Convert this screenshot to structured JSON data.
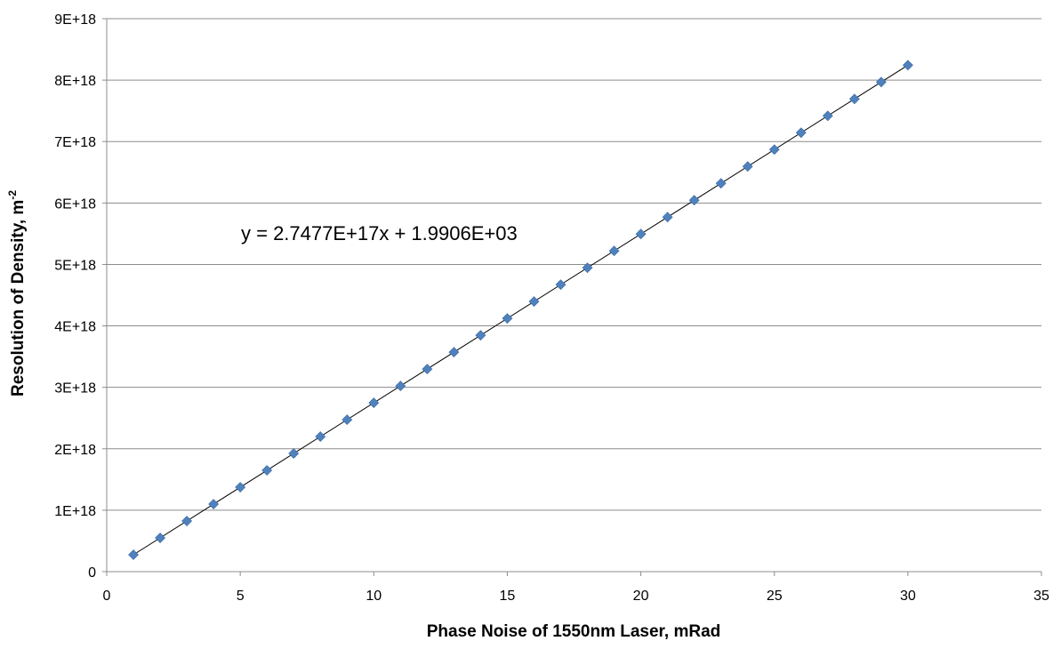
{
  "chart_data": {
    "type": "scatter",
    "title": "",
    "xlabel": "Phase Noise of 1550nm Laser, mRad",
    "ylabel_main": "Resolution of Density, m",
    "ylabel_sup": "-2",
    "xlim": [
      0,
      35
    ],
    "ylim": [
      0,
      9e+18
    ],
    "xticks": [
      0,
      5,
      10,
      15,
      20,
      25,
      30,
      35
    ],
    "xtick_labels": [
      "0",
      "5",
      "10",
      "15",
      "20",
      "25",
      "30",
      "35"
    ],
    "yticks": [
      0,
      1e+18,
      2e+18,
      3e+18,
      4e+18,
      5e+18,
      6e+18,
      7e+18,
      8e+18,
      9e+18
    ],
    "ytick_labels": [
      "0",
      "1E+18",
      "2E+18",
      "3E+18",
      "4E+18",
      "5E+18",
      "6E+18",
      "7E+18",
      "8E+18",
      "9E+18"
    ],
    "grid": "horizontal",
    "legend": "none",
    "marker_color": "#4F81BD",
    "trendline": {
      "slope": 2.7477e+17,
      "intercept": 1990.6,
      "label": "y = 2.7477E+17x + 1.9906E+03",
      "color": "#000000"
    },
    "series": [
      {
        "x": [
          1,
          2,
          3,
          4,
          5,
          6,
          7,
          8,
          9,
          10,
          11,
          12,
          13,
          14,
          15,
          16,
          17,
          18,
          19,
          20,
          21,
          22,
          23,
          24,
          25,
          26,
          27,
          28,
          29,
          30
        ],
        "values": [
          2.7477e+17,
          5.4954e+17,
          8.2431e+17,
          1.09908e+18,
          1.37385e+18,
          1.64862e+18,
          1.92339e+18,
          2.19816e+18,
          2.47293e+18,
          2.7477e+18,
          3.02247e+18,
          3.29724e+18,
          3.57201e+18,
          3.84678e+18,
          4.12155e+18,
          4.39632e+18,
          4.67109e+18,
          4.94586e+18,
          5.22063e+18,
          5.4954e+18,
          5.77017e+18,
          6.04494e+18,
          6.31971e+18,
          6.59448e+18,
          6.86925e+18,
          7.14402e+18,
          7.41879e+18,
          7.69356e+18,
          7.96833e+18,
          8.2431e+18
        ]
      }
    ]
  }
}
